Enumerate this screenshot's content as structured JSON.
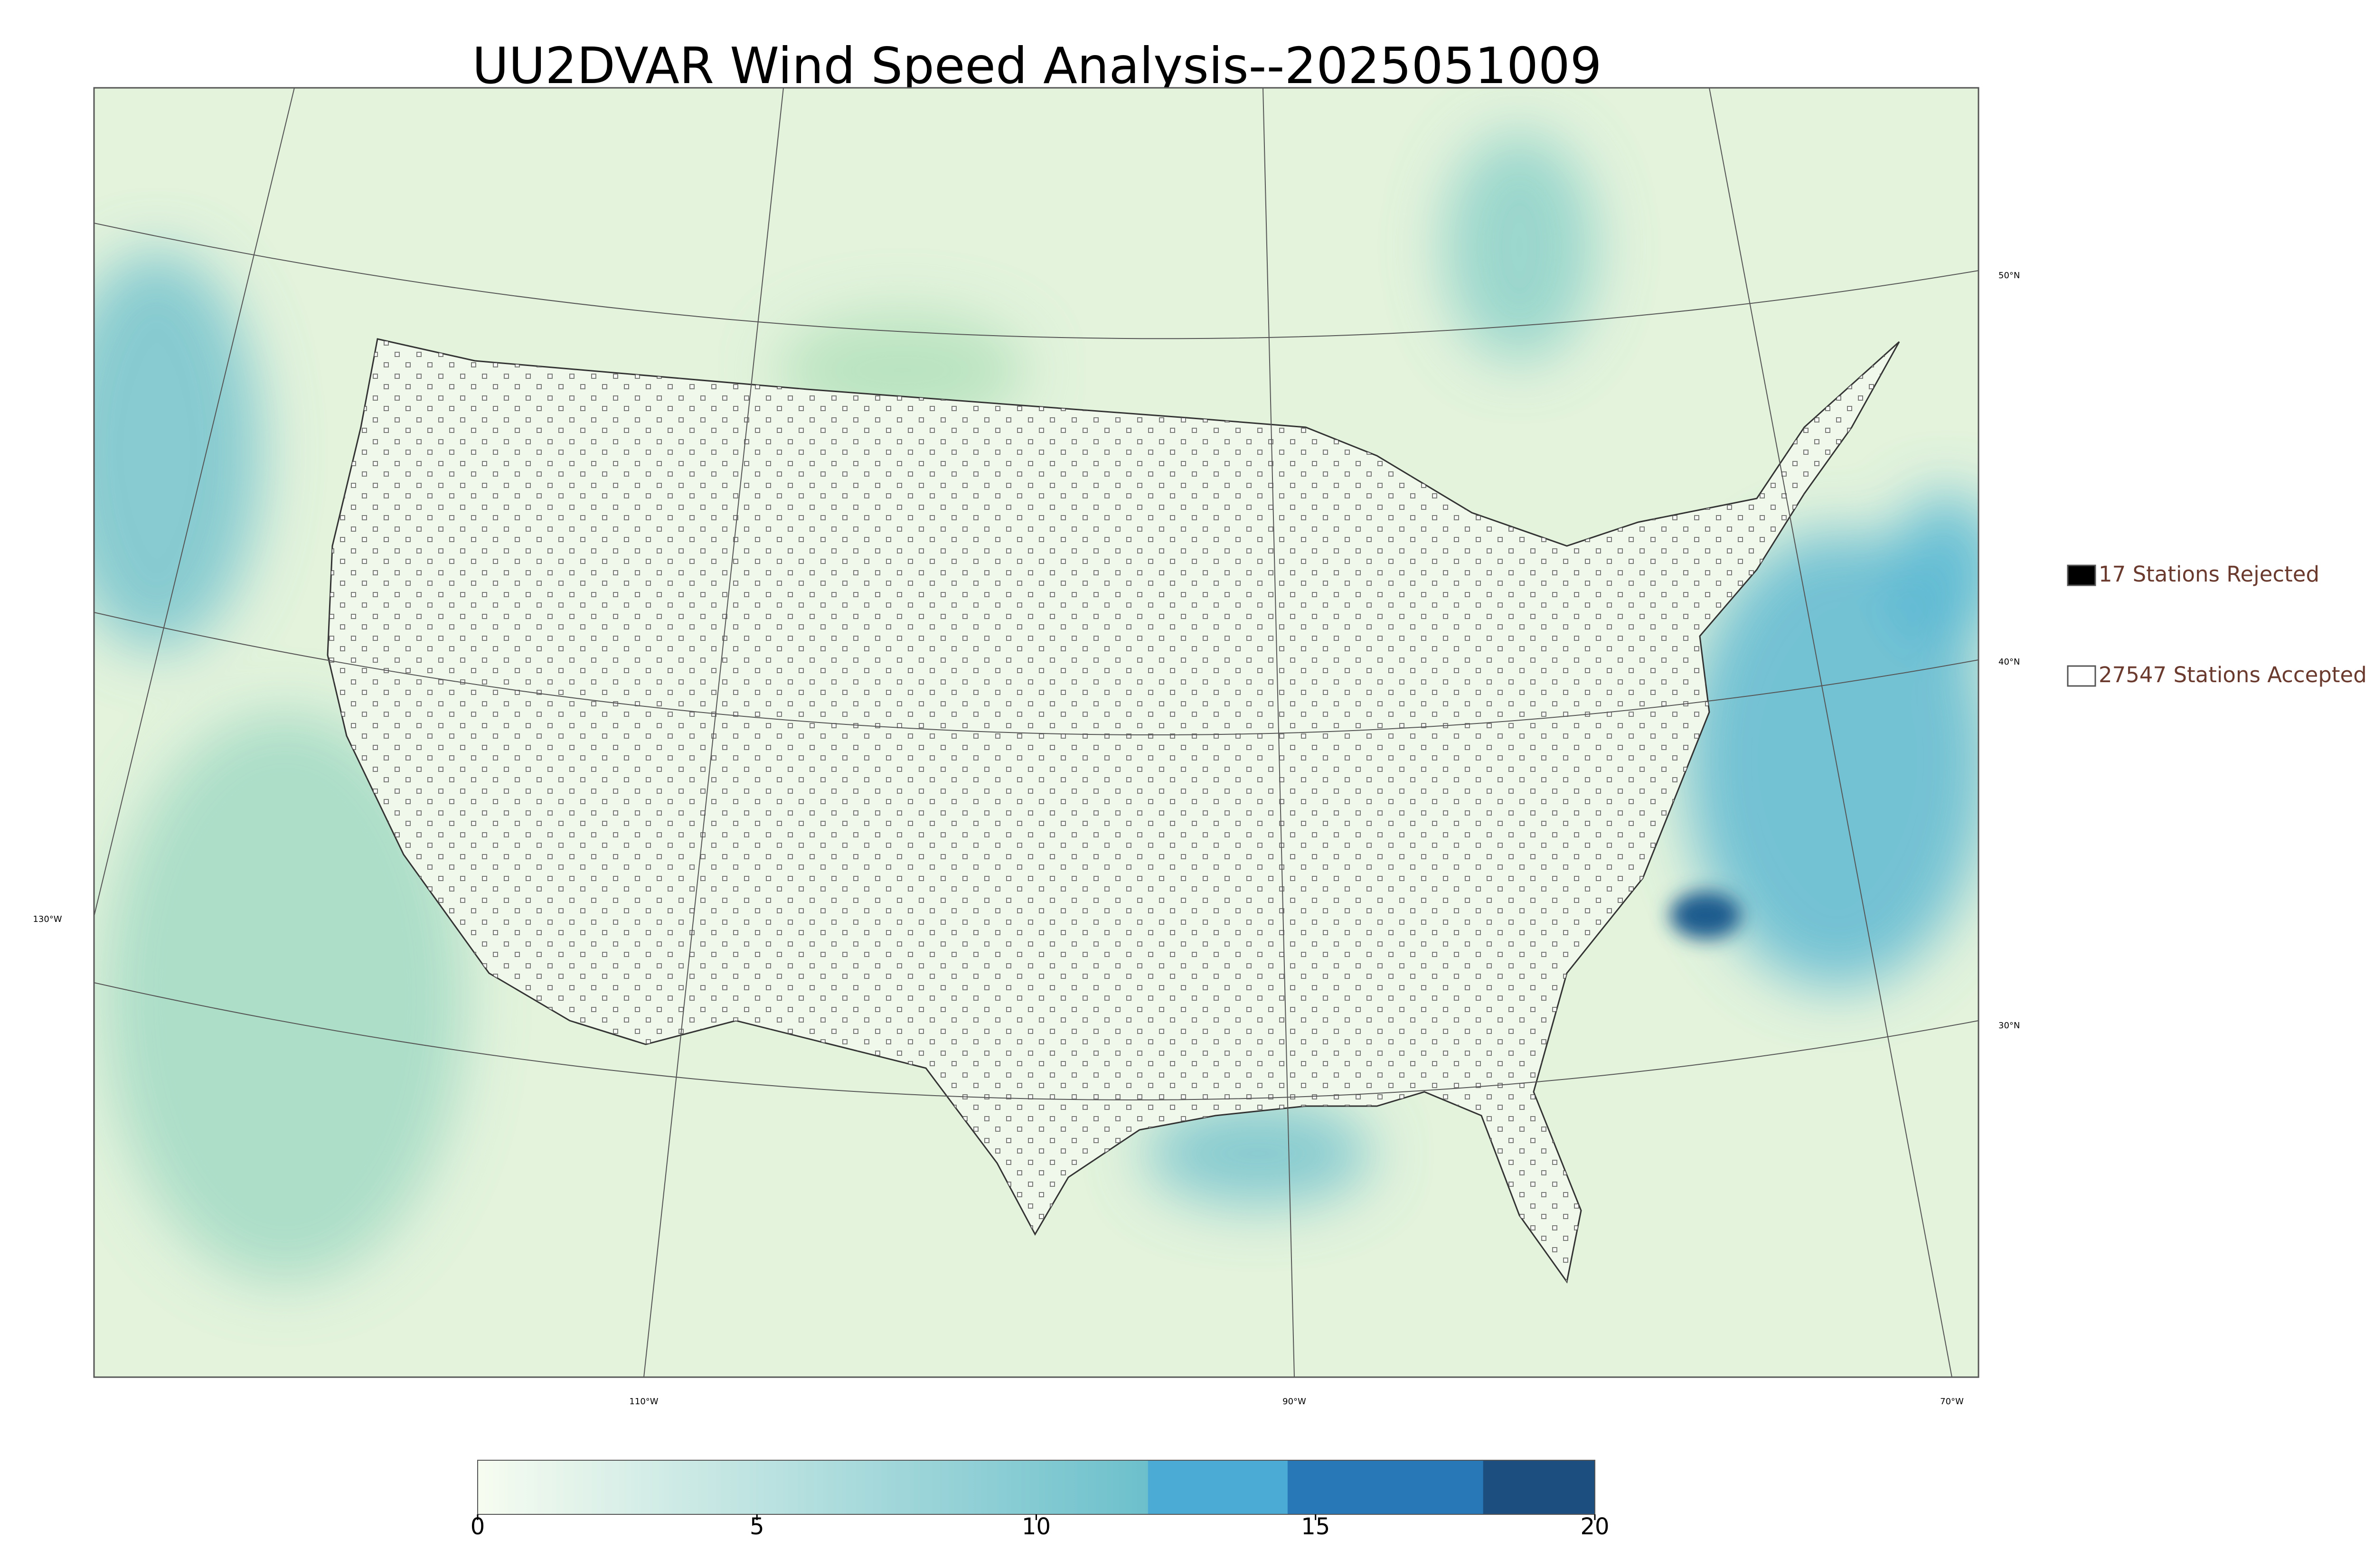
{
  "header": {
    "title": "UU2DVAR Wind Speed Analysis--2025051009"
  },
  "map": {
    "lat_labels": [
      "50°N",
      "40°N",
      "30°N"
    ],
    "lon_labels": [
      "130°W",
      "110°W",
      "90°W",
      "70°W"
    ]
  },
  "legend": {
    "items": [
      {
        "label": "17 Stations Rejected",
        "color": "#000000"
      },
      {
        "label": "27547 Stations Accepted",
        "color": "#ffffff"
      }
    ]
  },
  "colorbar": {
    "lim": [
      0,
      20
    ],
    "ticks": [
      0,
      5,
      10,
      15,
      20
    ],
    "segments": [
      {
        "from": 0,
        "to": 12,
        "color_start": "#f7fcf0",
        "color_end": "#6cc0cc"
      },
      {
        "from": 12,
        "to": 14.5,
        "color_start": "#4babd4",
        "color_end": "#4babd4"
      },
      {
        "from": 14.5,
        "to": 18,
        "color_start": "#2878b8",
        "color_end": "#2878b8"
      },
      {
        "from": 18,
        "to": 20,
        "color_start": "#1c4f80",
        "color_end": "#1c4f80"
      }
    ]
  }
}
